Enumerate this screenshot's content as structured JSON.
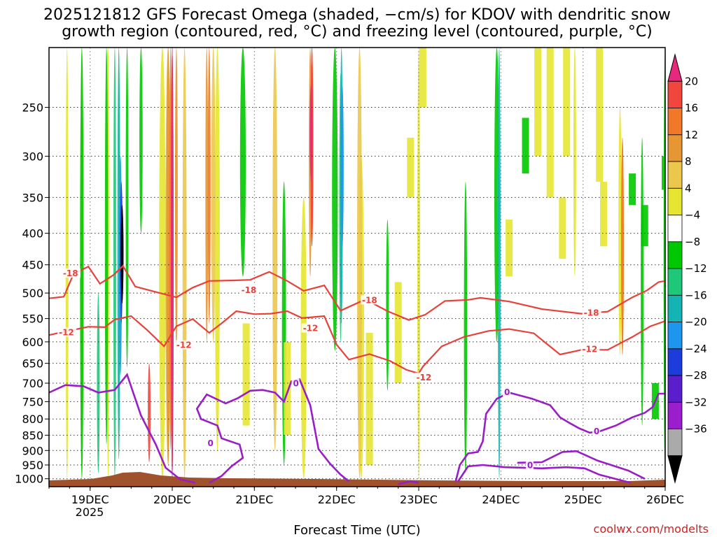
{
  "chart_data": {
    "type": "heatmap",
    "title_line1": "2025121812 GFS Forecast Omega (shaded, −cm/s) for KDOV with dendritic snow",
    "title_line2": "growth region (contoured, red, °C) and freezing level (contoured, purple, °C)",
    "xlabel": "Forecast Time (UTC)",
    "credit": "coolwx.com/modelts",
    "x_ticks": [
      {
        "label": "19DEC",
        "day": 19
      },
      {
        "label": "20DEC",
        "day": 20
      },
      {
        "label": "21DEC",
        "day": 21
      },
      {
        "label": "22DEC",
        "day": 22
      },
      {
        "label": "23DEC",
        "day": 23
      },
      {
        "label": "24DEC",
        "day": 24
      },
      {
        "label": "25DEC",
        "day": 25
      },
      {
        "label": "26DEC",
        "day": 26
      }
    ],
    "x_year_label": "2025",
    "xlim_days": [
      18.5,
      26.0
    ],
    "y_ticks": [
      250,
      300,
      350,
      400,
      450,
      500,
      550,
      600,
      650,
      700,
      750,
      800,
      850,
      900,
      950,
      1000
    ],
    "ylim_hpa": [
      1030,
      200
    ],
    "y_scale": "log-pressure",
    "grid": true,
    "colorbar": {
      "labels": [
        "20",
        "16",
        "12",
        "8",
        "4",
        "−4",
        "−8",
        "−12",
        "−16",
        "−20",
        "−24",
        "−28",
        "−32",
        "−36"
      ],
      "colors": [
        "#e8287c",
        "#f0463c",
        "#f07828",
        "#e69632",
        "#ebc84b",
        "#e6e632",
        "#ffffff",
        "#00c800",
        "#1ec878",
        "#14b4b4",
        "#1e96f0",
        "#1e3cdc",
        "#5a1ecd",
        "#9b1ecd",
        "#aaaaaa",
        "#000000"
      ]
    },
    "contour_labels": [
      {
        "text": "-18",
        "day": 18.67,
        "p": 466,
        "color": "#e8413a"
      },
      {
        "text": "-12",
        "day": 18.62,
        "p": 581,
        "color": "#e8413a"
      },
      {
        "text": "-12",
        "day": 20.05,
        "p": 609,
        "color": "#e8413a"
      },
      {
        "text": "-18",
        "day": 20.84,
        "p": 496,
        "color": "#e8413a"
      },
      {
        "text": "-12",
        "day": 21.59,
        "p": 572,
        "color": "#e8413a"
      },
      {
        "text": "-18",
        "day": 22.31,
        "p": 515,
        "color": "#e8413a"
      },
      {
        "text": "-12",
        "day": 22.97,
        "p": 687,
        "color": "#e8413a"
      },
      {
        "text": "-18",
        "day": 25.01,
        "p": 540,
        "color": "#e8413a"
      },
      {
        "text": "-12",
        "day": 24.99,
        "p": 618,
        "color": "#e8413a"
      },
      {
        "text": "0",
        "day": 21.47,
        "p": 703,
        "color": "#9a1ec8"
      },
      {
        "text": "0",
        "day": 20.43,
        "p": 878,
        "color": "#9a1ec8"
      },
      {
        "text": "0",
        "day": 24.04,
        "p": 726,
        "color": "#9a1ec8"
      },
      {
        "text": "0",
        "day": 25.13,
        "p": 840,
        "color": "#9a1ec8"
      },
      {
        "text": "0",
        "day": 24.32,
        "p": 954,
        "color": "#9a1ec8"
      }
    ],
    "contours": {
      "dgz_minus18": [
        [
          18.5,
          510
        ],
        [
          18.68,
          507
        ],
        [
          18.8,
          465
        ],
        [
          18.98,
          453
        ],
        [
          19.12,
          483
        ],
        [
          19.28,
          468
        ],
        [
          19.4,
          452
        ],
        [
          19.55,
          488
        ],
        [
          19.8,
          498
        ],
        [
          20.05,
          508
        ],
        [
          20.25,
          490
        ],
        [
          20.45,
          478
        ],
        [
          20.75,
          477
        ],
        [
          20.95,
          476
        ],
        [
          21.18,
          462
        ],
        [
          21.4,
          478
        ],
        [
          21.6,
          496
        ],
        [
          21.85,
          486
        ],
        [
          22.05,
          534
        ],
        [
          22.35,
          512
        ],
        [
          22.62,
          535
        ],
        [
          22.88,
          553
        ],
        [
          23.08,
          542
        ],
        [
          23.32,
          515
        ],
        [
          23.6,
          513
        ],
        [
          23.75,
          509
        ],
        [
          24.1,
          516
        ],
        [
          24.5,
          531
        ],
        [
          24.98,
          540
        ],
        [
          25.3,
          536
        ],
        [
          25.6,
          508
        ],
        [
          25.78,
          495
        ],
        [
          25.92,
          480
        ],
        [
          26.0,
          478
        ]
      ],
      "dgz_minus12": [
        [
          18.5,
          585
        ],
        [
          18.68,
          578
        ],
        [
          18.98,
          567
        ],
        [
          19.18,
          568
        ],
        [
          19.3,
          552
        ],
        [
          19.5,
          545
        ],
        [
          19.7,
          575
        ],
        [
          19.9,
          610
        ],
        [
          20.05,
          566
        ],
        [
          20.25,
          551
        ],
        [
          20.45,
          580
        ],
        [
          20.6,
          560
        ],
        [
          20.78,
          535
        ],
        [
          21.0,
          541
        ],
        [
          21.2,
          540
        ],
        [
          21.4,
          535
        ],
        [
          21.58,
          549
        ],
        [
          21.85,
          545
        ],
        [
          22.0,
          606
        ],
        [
          22.15,
          641
        ],
        [
          22.4,
          628
        ],
        [
          22.65,
          644
        ],
        [
          22.85,
          666
        ],
        [
          23.0,
          675
        ],
        [
          23.05,
          658
        ],
        [
          23.28,
          610
        ],
        [
          23.55,
          589
        ],
        [
          23.85,
          576
        ],
        [
          24.1,
          572
        ],
        [
          24.4,
          581
        ],
        [
          24.72,
          629
        ],
        [
          24.98,
          618
        ],
        [
          25.3,
          618
        ],
        [
          25.6,
          589
        ],
        [
          25.82,
          566
        ],
        [
          26.0,
          555
        ]
      ],
      "freezing_level": [
        [
          [
            18.5,
            725
          ],
          [
            18.7,
            705
          ],
          [
            18.92,
            708
          ],
          [
            19.1,
            725
          ],
          [
            19.3,
            718
          ],
          [
            19.45,
            678
          ],
          [
            19.62,
            790
          ],
          [
            19.8,
            880
          ],
          [
            19.92,
            960
          ],
          [
            20.1,
            1003
          ],
          [
            20.28,
            1015
          ]
        ],
        [
          [
            20.45,
            1015
          ],
          [
            20.6,
            990
          ],
          [
            20.72,
            955
          ],
          [
            20.86,
            925
          ],
          [
            20.82,
            880
          ],
          [
            20.6,
            860
          ],
          [
            20.55,
            820
          ],
          [
            20.35,
            800
          ],
          [
            20.3,
            770
          ],
          [
            20.42,
            730
          ],
          [
            20.65,
            755
          ],
          [
            20.8,
            740
          ],
          [
            20.95,
            720
          ],
          [
            21.1,
            718
          ],
          [
            21.25,
            725
          ],
          [
            21.36,
            750
          ],
          [
            21.45,
            695
          ],
          [
            21.55,
            690
          ],
          [
            21.68,
            760
          ],
          [
            21.78,
            895
          ],
          [
            21.92,
            945
          ],
          [
            22.05,
            985
          ],
          [
            22.15,
            1010
          ]
        ],
        [
          [
            22.75,
            1020
          ],
          [
            22.9,
            1010
          ],
          [
            23.0,
            1015
          ]
        ],
        [
          [
            23.45,
            1010
          ],
          [
            23.5,
            950
          ],
          [
            23.6,
            910
          ],
          [
            23.72,
            905
          ],
          [
            23.78,
            870
          ],
          [
            23.82,
            785
          ],
          [
            23.95,
            742
          ],
          [
            24.1,
            725
          ],
          [
            24.38,
            742
          ],
          [
            24.6,
            760
          ],
          [
            24.72,
            795
          ],
          [
            24.82,
            810
          ],
          [
            24.95,
            828
          ],
          [
            25.08,
            842
          ],
          [
            25.2,
            838
          ],
          [
            25.4,
            820
          ],
          [
            25.6,
            795
          ],
          [
            25.75,
            782
          ],
          [
            25.85,
            765
          ],
          [
            25.92,
            728
          ],
          [
            26.0,
            728
          ]
        ],
        [
          [
            23.48,
            1010
          ],
          [
            23.6,
            955
          ],
          [
            23.78,
            950
          ],
          [
            24.05,
            958
          ],
          [
            24.5,
            962
          ],
          [
            24.8,
            958
          ],
          [
            25.02,
            962
          ],
          [
            25.2,
            985
          ],
          [
            25.45,
            1005
          ],
          [
            25.58,
            1015
          ]
        ],
        [
          [
            24.2,
            942
          ],
          [
            24.5,
            940
          ],
          [
            24.75,
            905
          ],
          [
            24.92,
            902
          ],
          [
            25.18,
            935
          ],
          [
            25.55,
            970
          ],
          [
            25.75,
            1000
          ]
        ]
      ]
    }
  }
}
